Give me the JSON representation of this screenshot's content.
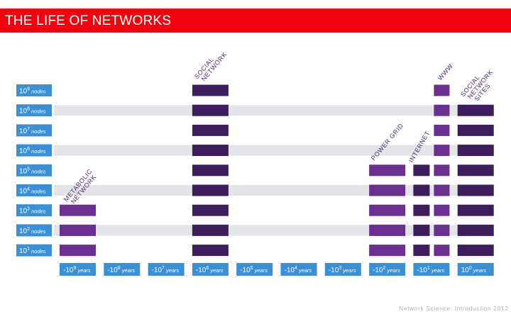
{
  "title": "THE LIFE OF NETWORKS",
  "footer": "Network Science: Introduction 2012",
  "colors": {
    "title_bar": "#f2000f",
    "label_blue": "#3b8fd4",
    "band_grey": "#e3e4e8",
    "dark_purple": "#3e1d5c",
    "light_purple": "#6b2f8f",
    "annotation_purple": "#4a2a70"
  },
  "chart_data": {
    "type": "matrix",
    "rows": [
      {
        "base": "10",
        "exp": "9",
        "unit": "nodes"
      },
      {
        "base": "10",
        "exp": "8",
        "unit": "nodes"
      },
      {
        "base": "10",
        "exp": "7",
        "unit": "nodes"
      },
      {
        "base": "10",
        "exp": "6",
        "unit": "nodes"
      },
      {
        "base": "10",
        "exp": "5",
        "unit": "nodes"
      },
      {
        "base": "10",
        "exp": "4",
        "unit": "nodes"
      },
      {
        "base": "10",
        "exp": "3",
        "unit": "nodes"
      },
      {
        "base": "10",
        "exp": "2",
        "unit": "nodes"
      },
      {
        "base": "10",
        "exp": "1",
        "unit": "nodes"
      }
    ],
    "columns": [
      {
        "base": "-10",
        "exp": "9",
        "unit": "years"
      },
      {
        "base": "-10",
        "exp": "8",
        "unit": "years"
      },
      {
        "base": "-10",
        "exp": "7",
        "unit": "years"
      },
      {
        "base": "-10",
        "exp": "6",
        "unit": "years"
      },
      {
        "base": "-10",
        "exp": "5",
        "unit": "years"
      },
      {
        "base": "-10",
        "exp": "4",
        "unit": "years"
      },
      {
        "base": "-10",
        "exp": "3",
        "unit": "years"
      },
      {
        "base": "-10",
        "exp": "2",
        "unit": "years"
      },
      {
        "base": "-10",
        "exp": "1",
        "unit": "years"
      },
      {
        "base": "10",
        "exp": "0",
        "unit": "years"
      }
    ],
    "networks": [
      {
        "name": "METABOLIC NETWORK",
        "lines": [
          "METABOLIC",
          "NETWORK"
        ],
        "column": 0,
        "node_rows": [
          1,
          2,
          3
        ],
        "shade": "light"
      },
      {
        "name": "SOCIAL NETWORK",
        "lines": [
          "SOCIAL",
          "NETWORK"
        ],
        "column": 3,
        "node_rows": [
          1,
          2,
          3,
          4,
          5,
          6,
          7,
          8,
          9
        ],
        "shade": "dark"
      },
      {
        "name": "POWER GRID",
        "lines": [
          "POWER GRID"
        ],
        "column": 7,
        "node_rows": [
          1,
          2,
          3,
          4,
          5
        ],
        "shade": "light"
      },
      {
        "name": "INTERNET",
        "lines": [
          "INTERNET"
        ],
        "column": 8,
        "node_rows": [
          1,
          2,
          3,
          4,
          5
        ],
        "shade": "dark",
        "sub": "left"
      },
      {
        "name": "WWW",
        "lines": [
          "WWW"
        ],
        "column": 8,
        "node_rows": [
          1,
          2,
          3,
          4,
          5,
          6,
          7,
          8,
          9
        ],
        "shade": "light",
        "sub": "right"
      },
      {
        "name": "SOCIAL NETWORK SITES",
        "lines": [
          "SOCIAL",
          "NETWORK",
          "SITES"
        ],
        "column": 9,
        "node_rows": [
          1,
          2,
          3,
          4,
          5,
          6,
          7,
          8
        ],
        "shade": "dark"
      }
    ]
  }
}
